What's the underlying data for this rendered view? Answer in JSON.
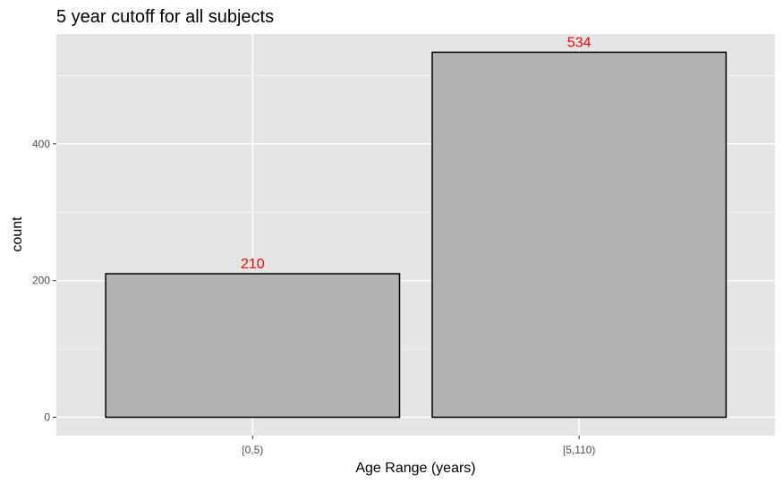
{
  "chart_data": {
    "type": "bar",
    "title": "5 year cutoff for all subjects",
    "xlabel": "Age Range (years)",
    "ylabel": "count",
    "categories": [
      "[0,5)",
      "[5,110)"
    ],
    "values": [
      210,
      534
    ],
    "data_labels": [
      "210",
      "534"
    ],
    "ylim": [
      0,
      560
    ],
    "yticks": [
      0,
      200,
      400
    ],
    "grid": true,
    "colors": {
      "panel": "#e5e5e5",
      "bar_fill": "#b2b2b2",
      "bar_stroke": "#000000",
      "grid_major": "#ffffff",
      "label": "#ff0000",
      "tick_text": "#4d4d4d"
    }
  }
}
